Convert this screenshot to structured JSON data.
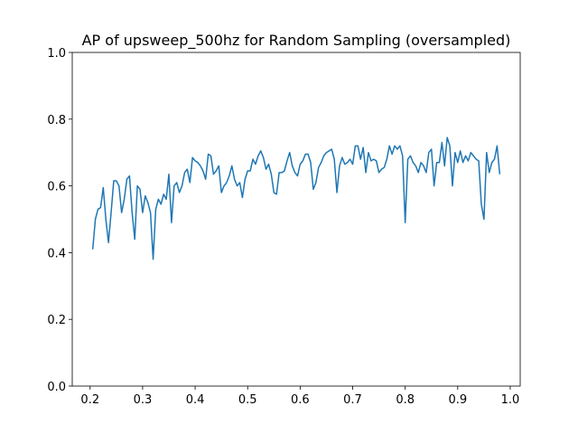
{
  "chart_data": {
    "type": "line",
    "title": "AP of upsweep_500hz for Random Sampling (oversampled)",
    "x": [
      0.205,
      0.21,
      0.215,
      0.22,
      0.225,
      0.23,
      0.235,
      0.24,
      0.245,
      0.25,
      0.255,
      0.26,
      0.265,
      0.27,
      0.275,
      0.28,
      0.285,
      0.29,
      0.295,
      0.3,
      0.305,
      0.31,
      0.315,
      0.32,
      0.325,
      0.33,
      0.335,
      0.34,
      0.345,
      0.35,
      0.355,
      0.36,
      0.365,
      0.37,
      0.375,
      0.38,
      0.385,
      0.39,
      0.395,
      0.4,
      0.405,
      0.41,
      0.415,
      0.42,
      0.425,
      0.43,
      0.435,
      0.44,
      0.445,
      0.45,
      0.455,
      0.46,
      0.465,
      0.47,
      0.475,
      0.48,
      0.485,
      0.49,
      0.495,
      0.5,
      0.505,
      0.51,
      0.515,
      0.52,
      0.525,
      0.53,
      0.535,
      0.54,
      0.545,
      0.55,
      0.555,
      0.56,
      0.565,
      0.57,
      0.575,
      0.58,
      0.585,
      0.59,
      0.595,
      0.6,
      0.605,
      0.61,
      0.615,
      0.62,
      0.625,
      0.63,
      0.635,
      0.64,
      0.645,
      0.65,
      0.655,
      0.66,
      0.665,
      0.67,
      0.675,
      0.68,
      0.685,
      0.69,
      0.695,
      0.7,
      0.705,
      0.71,
      0.715,
      0.72,
      0.725,
      0.73,
      0.735,
      0.74,
      0.745,
      0.75,
      0.755,
      0.76,
      0.765,
      0.77,
      0.775,
      0.78,
      0.785,
      0.79,
      0.795,
      0.8,
      0.805,
      0.81,
      0.815,
      0.82,
      0.825,
      0.83,
      0.835,
      0.84,
      0.845,
      0.85,
      0.855,
      0.86,
      0.865,
      0.87,
      0.875,
      0.88,
      0.885,
      0.89,
      0.895,
      0.9,
      0.905,
      0.91,
      0.915,
      0.92,
      0.925,
      0.93,
      0.935,
      0.94,
      0.945,
      0.95,
      0.955,
      0.96,
      0.965,
      0.97,
      0.975,
      0.98
    ],
    "series": [
      {
        "color": "#1f77b4",
        "values": [
          0.41,
          0.5,
          0.53,
          0.535,
          0.595,
          0.5,
          0.43,
          0.52,
          0.615,
          0.615,
          0.6,
          0.52,
          0.56,
          0.62,
          0.63,
          0.52,
          0.44,
          0.6,
          0.59,
          0.52,
          0.57,
          0.55,
          0.52,
          0.38,
          0.53,
          0.56,
          0.545,
          0.575,
          0.56,
          0.635,
          0.49,
          0.6,
          0.61,
          0.58,
          0.6,
          0.64,
          0.65,
          0.61,
          0.685,
          0.675,
          0.67,
          0.66,
          0.645,
          0.62,
          0.695,
          0.69,
          0.635,
          0.645,
          0.66,
          0.58,
          0.6,
          0.61,
          0.63,
          0.66,
          0.62,
          0.6,
          0.61,
          0.565,
          0.62,
          0.645,
          0.645,
          0.68,
          0.665,
          0.69,
          0.705,
          0.685,
          0.65,
          0.665,
          0.635,
          0.58,
          0.575,
          0.64,
          0.64,
          0.645,
          0.675,
          0.7,
          0.66,
          0.64,
          0.63,
          0.665,
          0.675,
          0.695,
          0.695,
          0.67,
          0.59,
          0.61,
          0.655,
          0.67,
          0.69,
          0.7,
          0.705,
          0.71,
          0.68,
          0.58,
          0.66,
          0.685,
          0.665,
          0.67,
          0.68,
          0.665,
          0.72,
          0.72,
          0.68,
          0.715,
          0.64,
          0.7,
          0.675,
          0.68,
          0.675,
          0.64,
          0.65,
          0.655,
          0.68,
          0.72,
          0.695,
          0.72,
          0.71,
          0.72,
          0.69,
          0.49,
          0.68,
          0.69,
          0.67,
          0.66,
          0.64,
          0.67,
          0.66,
          0.64,
          0.7,
          0.71,
          0.6,
          0.67,
          0.67,
          0.73,
          0.66,
          0.745,
          0.72,
          0.6,
          0.7,
          0.67,
          0.705,
          0.67,
          0.69,
          0.675,
          0.7,
          0.69,
          0.68,
          0.675,
          0.545,
          0.5,
          0.7,
          0.64,
          0.67,
          0.68,
          0.72,
          0.635
        ]
      }
    ],
    "xlim": [
      0.166,
      1.019
    ],
    "ylim": [
      0,
      1
    ],
    "xticks": [
      0.2,
      0.3,
      0.4,
      0.5,
      0.6,
      0.7,
      0.8,
      0.9,
      {
        "value": 1.0,
        "label": "1.0"
      }
    ],
    "yticks": [
      {
        "value": 0,
        "label": "0.0"
      },
      0.2,
      0.4,
      0.6,
      0.8,
      {
        "value": 1.0,
        "label": "1.0"
      }
    ]
  }
}
